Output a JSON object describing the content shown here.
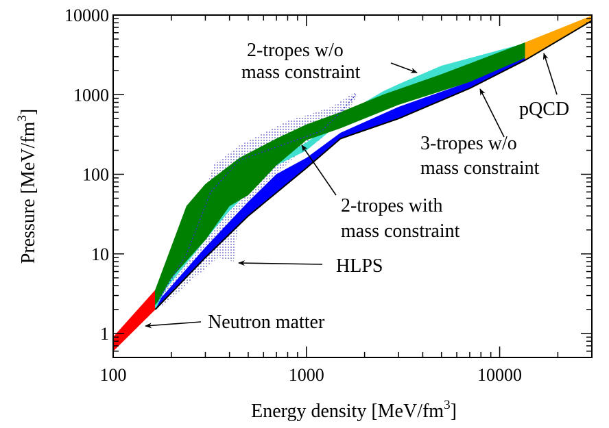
{
  "chart_data": {
    "type": "area",
    "xlabel": "Energy density [MeV/fm",
    "xlabel_sup": "3",
    "xlabel_end": "]",
    "ylabel": "Pressure  [MeV/fm",
    "ylabel_sup": "3",
    "ylabel_end": "]",
    "xscale": "log",
    "yscale": "log",
    "xlim": [
      100,
      30000
    ],
    "ylim": [
      0.5,
      10000
    ],
    "xticks": [
      100,
      1000,
      10000
    ],
    "xtick_labels": [
      "100",
      "1000",
      "10000"
    ],
    "yticks": [
      1,
      10,
      100,
      1000,
      10000
    ],
    "ytick_labels": [
      "1",
      "10",
      "100",
      "1000",
      "10000"
    ],
    "grid": false,
    "legend": "none",
    "colors": {
      "neutron_matter": "#ff0000",
      "pqcd": "#ffa500",
      "two_tropes_no_mass": "#40e0d0",
      "two_tropes_mass": "#008000",
      "three_tropes_no_mass": "#0000ff",
      "hlps": "#2222aa"
    },
    "regions": [
      {
        "id": "neutron-matter",
        "color": "#ff0000",
        "polygon": [
          [
            100,
            0.6
          ],
          [
            100,
            0.9
          ],
          [
            165,
            3.5
          ],
          [
            165,
            2.0
          ]
        ]
      },
      {
        "id": "pqcd",
        "color": "#ffa500",
        "polygon": [
          [
            13500,
            2700
          ],
          [
            13500,
            4500
          ],
          [
            30000,
            9800
          ],
          [
            30000,
            8500
          ]
        ]
      },
      {
        "id": "hlps",
        "color": "#2222aa",
        "pattern": "dotted",
        "polygon": [
          [
            180,
            2.2
          ],
          [
            250,
            4.5
          ],
          [
            350,
            9
          ],
          [
            420,
            8
          ],
          [
            440,
            20
          ],
          [
            520,
            50
          ],
          [
            700,
            100
          ],
          [
            900,
            180
          ],
          [
            1200,
            280
          ],
          [
            1500,
            450
          ],
          [
            1850,
            1000
          ],
          [
            1750,
            1050
          ],
          [
            1350,
            700
          ],
          [
            1000,
            550
          ],
          [
            800,
            470
          ],
          [
            600,
            330
          ],
          [
            450,
            230
          ],
          [
            330,
            130
          ],
          [
            310,
            80
          ],
          [
            250,
            25
          ],
          [
            200,
            10
          ],
          [
            170,
            3.5
          ]
        ]
      },
      {
        "id": "three-tropes-no-mass",
        "color": "#0000ff",
        "polygon": [
          [
            165,
            2.0
          ],
          [
            300,
            9
          ],
          [
            500,
            30
          ],
          [
            1000,
            120
          ],
          [
            1500,
            280
          ],
          [
            3000,
            500
          ],
          [
            7000,
            1200
          ],
          [
            13500,
            2700
          ],
          [
            13500,
            2900
          ],
          [
            7000,
            1450
          ],
          [
            3000,
            700
          ],
          [
            1500,
            330
          ],
          [
            1000,
            160
          ],
          [
            700,
            100
          ],
          [
            500,
            45
          ],
          [
            300,
            12
          ],
          [
            165,
            2.3
          ]
        ]
      },
      {
        "id": "two-tropes-no-mass",
        "color": "#40e0d0",
        "polygon": [
          [
            165,
            2.0
          ],
          [
            200,
            5
          ],
          [
            300,
            15
          ],
          [
            400,
            45
          ],
          [
            600,
            120
          ],
          [
            1000,
            250
          ],
          [
            1500,
            500
          ],
          [
            2000,
            800
          ],
          [
            2500,
            1100
          ],
          [
            3000,
            1350
          ],
          [
            5000,
            2300
          ],
          [
            13500,
            4400
          ],
          [
            13500,
            3600
          ],
          [
            5000,
            1800
          ],
          [
            2500,
            900
          ],
          [
            1500,
            450
          ],
          [
            1000,
            200
          ],
          [
            700,
            130
          ],
          [
            500,
            60
          ],
          [
            400,
            35
          ],
          [
            300,
            15
          ],
          [
            165,
            2.5
          ]
        ]
      },
      {
        "id": "two-tropes-mass",
        "color": "#008000",
        "polygon": [
          [
            165,
            2.3
          ],
          [
            165,
            3.5
          ],
          [
            240,
            40
          ],
          [
            300,
            75
          ],
          [
            450,
            160
          ],
          [
            700,
            280
          ],
          [
            1000,
            420
          ],
          [
            1500,
            600
          ],
          [
            2500,
            1000
          ],
          [
            5000,
            1800
          ],
          [
            13500,
            4500
          ],
          [
            13500,
            2900
          ],
          [
            7000,
            1450
          ],
          [
            3000,
            750
          ],
          [
            1500,
            380
          ],
          [
            1000,
            270
          ],
          [
            700,
            130
          ],
          [
            500,
            55
          ],
          [
            400,
            40
          ],
          [
            300,
            15
          ],
          [
            200,
            5
          ],
          [
            170,
            2.5
          ]
        ]
      },
      {
        "id": "hlps-center-line",
        "color": "#3333cc",
        "dashed": true,
        "polyline": [
          [
            170,
            2.5
          ],
          [
            240,
            10
          ],
          [
            320,
            60
          ],
          [
            450,
            150
          ],
          [
            700,
            220
          ],
          [
            1200,
            350
          ],
          [
            1500,
            600
          ],
          [
            1800,
            1000
          ]
        ]
      },
      {
        "id": "lower-boundary-line",
        "color": "#000000",
        "polyline": [
          [
            165,
            2.0
          ],
          [
            300,
            9
          ],
          [
            500,
            30
          ],
          [
            1000,
            120
          ],
          [
            1500,
            280
          ],
          [
            3000,
            500
          ],
          [
            7000,
            1200
          ],
          [
            13500,
            2700
          ],
          [
            30000,
            8500
          ]
        ]
      }
    ],
    "annotations": [
      {
        "id": "annot-2tropes-no-mass-1",
        "text": "2-tropes w/o",
        "x": 360,
        "y": 82
      },
      {
        "id": "annot-2tropes-no-mass-2",
        "text": "mass constraint",
        "x": 352,
        "y": 114
      },
      {
        "id": "annot-pqcd",
        "text": "pQCD",
        "x": 757,
        "y": 168
      },
      {
        "id": "annot-3tropes-no-mass-1",
        "text": "3-tropes w/o",
        "x": 613,
        "y": 218
      },
      {
        "id": "annot-3tropes-no-mass-2",
        "text": "mass constraint",
        "x": 613,
        "y": 254
      },
      {
        "id": "annot-2tropes-mass-1",
        "text": "2-tropes with",
        "x": 497,
        "y": 309
      },
      {
        "id": "annot-2tropes-mass-2",
        "text": "mass constraint",
        "x": 497,
        "y": 346
      },
      {
        "id": "annot-hlps",
        "text": "HLPS",
        "x": 490,
        "y": 397
      },
      {
        "id": "annot-neutron-matter",
        "text": "Neutron matter",
        "x": 303,
        "y": 479
      }
    ],
    "arrows": [
      {
        "id": "arrow-2tropes-no-mass",
        "from": [
          570,
          92
        ],
        "to": [
          608,
          106
        ]
      },
      {
        "id": "arrow-pqcd",
        "from": [
          812,
          138
        ],
        "to": [
          793,
          78
        ]
      },
      {
        "id": "arrow-3tropes-no-mass",
        "from": [
          735,
          200
        ],
        "to": [
          700,
          130
        ]
      },
      {
        "id": "arrow-2tropes-mass",
        "from": [
          490,
          285
        ],
        "to": [
          440,
          212
        ]
      },
      {
        "id": "arrow-hlps",
        "from": [
          470,
          386
        ],
        "to": [
          348,
          384
        ]
      },
      {
        "id": "arrow-neutron-matter",
        "from": [
          293,
          470
        ],
        "to": [
          212,
          476
        ]
      }
    ]
  }
}
